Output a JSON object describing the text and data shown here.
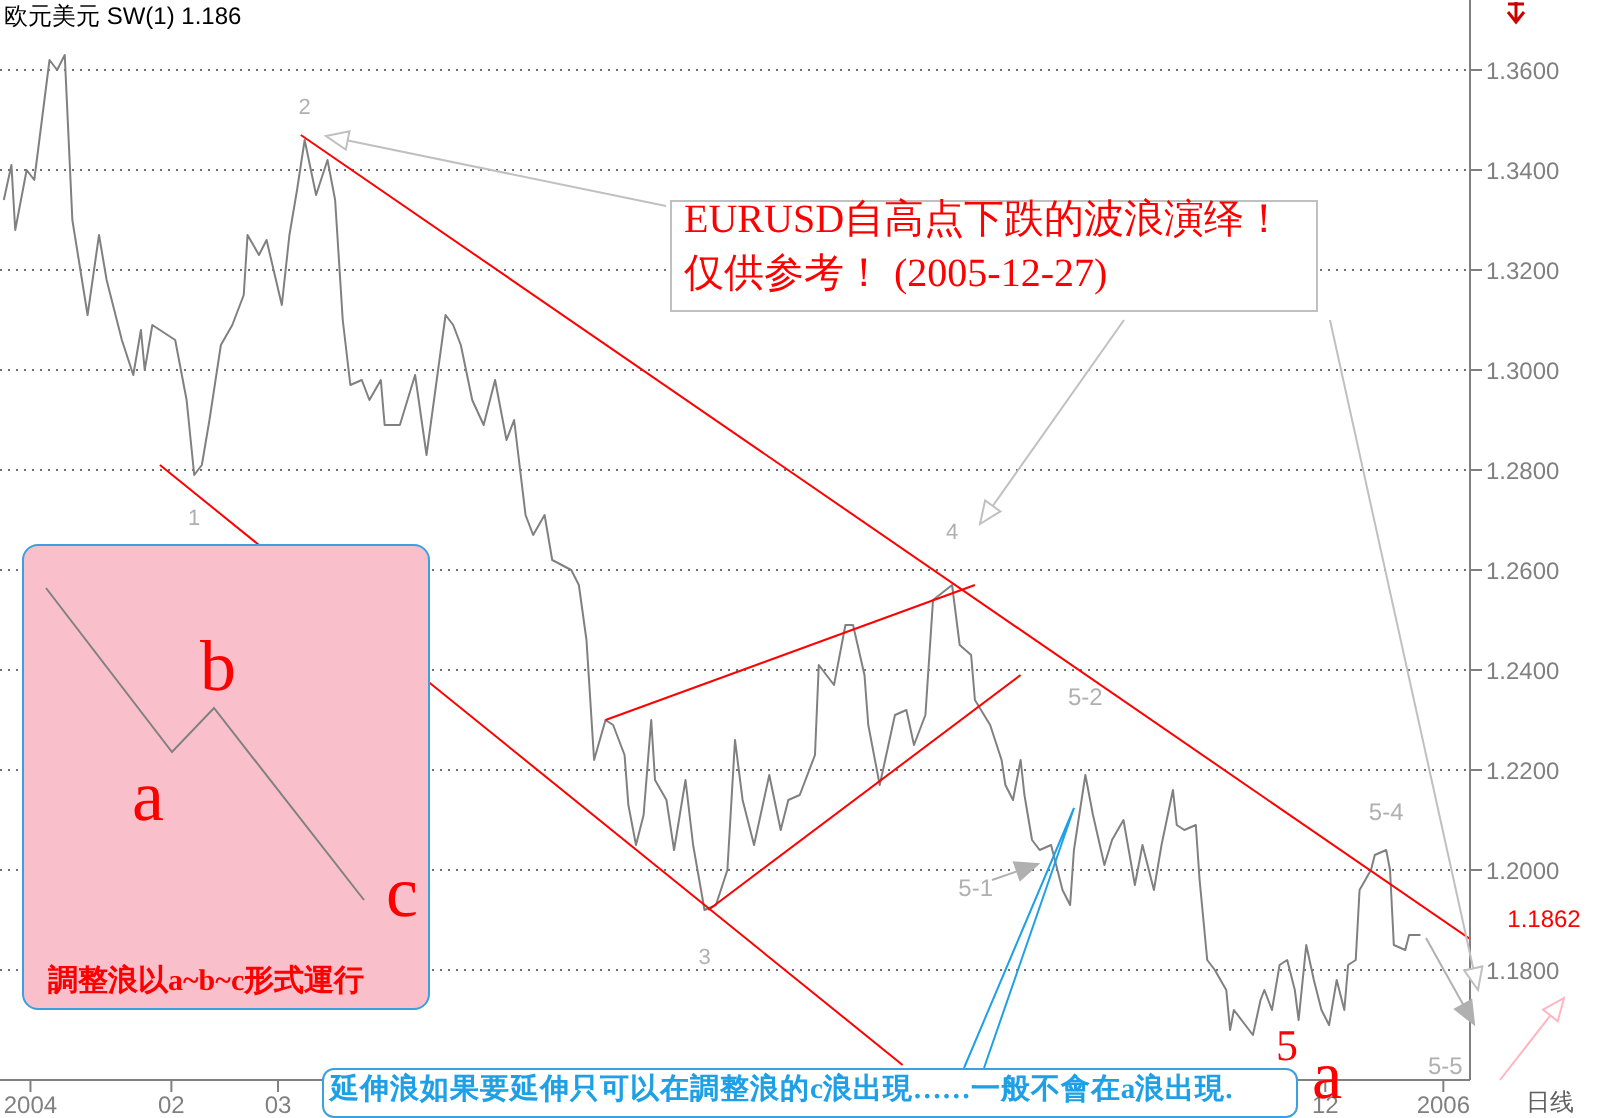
{
  "chart_data": {
    "type": "line",
    "title": "欧元美元 SW(1) 1.186",
    "xlabel": "日线",
    "x": [
      "2004-12-19",
      "2004-12-21",
      "2004-12-22",
      "2004-12-25",
      "2004-12-27",
      "2004-12-29",
      "2004-12-31",
      "2005-01-02",
      "2005-01-04",
      "2005-01-06",
      "2005-01-10",
      "2005-01-13",
      "2005-01-15",
      "2005-01-19",
      "2005-01-22",
      "2005-01-24",
      "2005-01-25",
      "2005-01-27",
      "2005-01-31",
      "2005-02-02",
      "2005-02-05",
      "2005-02-07",
      "2005-02-09",
      "2005-02-11",
      "2005-02-14",
      "2005-02-17",
      "2005-02-20",
      "2005-02-21",
      "2005-02-24",
      "2005-02-26",
      "2005-03-02",
      "2005-03-04",
      "2005-03-06",
      "2005-03-08",
      "2005-03-11",
      "2005-03-14",
      "2005-03-16",
      "2005-03-18",
      "2005-03-20",
      "2005-03-23",
      "2005-03-25",
      "2005-03-28",
      "2005-03-29",
      "2005-04-02",
      "2005-04-06",
      "2005-04-09",
      "2005-04-14",
      "2005-04-16",
      "2005-04-18",
      "2005-04-21",
      "2005-04-24",
      "2005-04-27",
      "2005-04-30",
      "2005-05-02",
      "2005-05-05",
      "2005-05-07",
      "2005-05-10",
      "2005-05-12",
      "2005-05-17",
      "2005-05-19",
      "2005-05-21",
      "2005-05-23",
      "2005-05-26",
      "2005-05-28",
      "2005-05-31",
      "2005-06-01",
      "2005-06-03",
      "2005-06-05",
      "2005-06-07",
      "2005-06-08",
      "2005-06-11",
      "2005-06-13",
      "2005-06-16",
      "2005-06-18",
      "2005-06-21",
      "2005-06-24",
      "2005-06-27",
      "2005-06-29",
      "2005-07-01",
      "2005-07-04",
      "2005-07-08",
      "2005-07-11",
      "2005-07-13",
      "2005-07-16",
      "2005-07-20",
      "2005-07-21",
      "2005-07-25",
      "2005-07-28",
      "2005-07-30",
      "2005-08-02",
      "2005-08-03",
      "2005-08-06",
      "2005-08-10",
      "2005-08-13",
      "2005-08-15",
      "2005-08-18",
      "2005-08-20",
      "2005-08-25",
      "2005-08-27",
      "2005-08-30",
      "2005-08-31",
      "2005-09-04",
      "2005-09-07",
      "2005-09-08",
      "2005-09-10",
      "2005-09-12",
      "2005-09-13",
      "2005-09-15",
      "2005-09-17",
      "2005-09-20",
      "2005-09-23",
      "2005-09-25",
      "2005-09-26",
      "2005-09-29",
      "2005-10-01",
      "2005-10-04",
      "2005-10-06",
      "2005-10-09",
      "2005-10-12",
      "2005-10-14",
      "2005-10-17",
      "2005-10-19",
      "2005-10-22",
      "2005-10-23",
      "2005-10-25",
      "2005-10-28",
      "2005-10-29",
      "2005-10-31",
      "2005-11-02",
      "2005-11-05",
      "2005-11-06",
      "2005-11-07",
      "2005-11-10",
      "2005-11-12",
      "2005-11-14",
      "2005-11-15",
      "2005-11-17",
      "2005-11-19",
      "2005-11-21",
      "2005-11-23",
      "2005-11-24",
      "2005-11-26",
      "2005-11-28",
      "2005-11-30",
      "2005-12-02",
      "2005-12-04",
      "2005-12-06",
      "2005-12-07",
      "2005-12-09",
      "2005-12-10",
      "2005-12-13",
      "2005-12-14",
      "2005-12-17",
      "2005-12-18",
      "2005-12-19",
      "2005-12-22",
      "2005-12-23",
      "2005-12-26"
    ],
    "series": [
      {
        "color": "#808080",
        "values": [
          1.334,
          1.341,
          1.328,
          1.34,
          1.338,
          1.35,
          1.362,
          1.36,
          1.363,
          1.33,
          1.311,
          1.327,
          1.318,
          1.306,
          1.299,
          1.308,
          1.3,
          1.309,
          1.307,
          1.306,
          1.294,
          1.279,
          1.281,
          1.29,
          1.305,
          1.309,
          1.315,
          1.327,
          1.323,
          1.326,
          1.313,
          1.327,
          1.336,
          1.346,
          1.335,
          1.342,
          1.334,
          1.31,
          1.297,
          1.298,
          1.294,
          1.298,
          1.289,
          1.289,
          1.299,
          1.283,
          1.311,
          1.309,
          1.305,
          1.294,
          1.289,
          1.298,
          1.286,
          1.29,
          1.271,
          1.267,
          1.271,
          1.262,
          1.26,
          1.257,
          1.246,
          1.222,
          1.23,
          1.229,
          1.223,
          1.213,
          1.205,
          1.211,
          1.23,
          1.218,
          1.214,
          1.204,
          1.218,
          1.205,
          1.192,
          1.193,
          1.2,
          1.226,
          1.214,
          1.205,
          1.219,
          1.208,
          1.214,
          1.215,
          1.223,
          1.241,
          1.237,
          1.249,
          1.249,
          1.239,
          1.229,
          1.217,
          1.231,
          1.232,
          1.225,
          1.231,
          1.254,
          1.257,
          1.245,
          1.243,
          1.234,
          1.229,
          1.222,
          1.217,
          1.214,
          1.222,
          1.215,
          1.206,
          1.204,
          1.205,
          1.196,
          1.193,
          1.204,
          1.219,
          1.211,
          1.201,
          1.206,
          1.21,
          1.197,
          1.205,
          1.196,
          1.205,
          1.216,
          1.209,
          1.208,
          1.209,
          1.198,
          1.182,
          1.18,
          1.176,
          1.168,
          1.172,
          1.169,
          1.167,
          1.174,
          1.176,
          1.172,
          1.181,
          1.182,
          1.176,
          1.17,
          1.185,
          1.178,
          1.172,
          1.169,
          1.178,
          1.172,
          1.181,
          1.182,
          1.196,
          1.2,
          1.203,
          1.204,
          1.2,
          1.185,
          1.184,
          1.187,
          1.187
        ]
      },
      {
        "type": "line",
        "color": "#ff0000",
        "x": [
          "2005-03-07",
          "2006-01-08"
        ],
        "values": [
          1.347,
          1.1862
        ]
      },
      {
        "type": "line",
        "color": "#ff0000",
        "x": [
          "2005-01-29",
          "2005-08-12"
        ],
        "values": [
          1.281,
          1.161
        ]
      },
      {
        "type": "line",
        "color": "#ff0000",
        "x": [
          "2005-05-26",
          "2005-08-31"
        ],
        "values": [
          1.23,
          1.257
        ]
      },
      {
        "type": "line",
        "color": "#ff0000",
        "x": [
          "2005-06-22",
          "2005-09-12"
        ],
        "values": [
          1.192,
          1.239
        ]
      }
    ],
    "xlim": [
      "2004-12-18",
      "2006-01-08"
    ],
    "xticks": [
      {
        "value": "2004-12-26",
        "label": "2004"
      },
      {
        "value": "2005-02-01",
        "label": "02"
      },
      {
        "value": "2005-03-01",
        "label": "03"
      },
      {
        "value": "2005-12-01",
        "label": "12"
      },
      {
        "value": "2006-01-01",
        "label": "2006"
      }
    ],
    "ylim": [
      1.158,
      1.374
    ],
    "yticks": [
      {
        "value": 1.18,
        "label": "1.1800"
      },
      {
        "value": 1.2,
        "label": "1.2000"
      },
      {
        "value": 1.22,
        "label": "1.2200"
      },
      {
        "value": 1.24,
        "label": "1.2400"
      },
      {
        "value": 1.26,
        "label": "1.2600"
      },
      {
        "value": 1.28,
        "label": "1.2800"
      },
      {
        "value": 1.3,
        "label": "1.3000"
      },
      {
        "value": 1.32,
        "label": "1.3200"
      },
      {
        "value": 1.34,
        "label": "1.3400"
      },
      {
        "value": 1.36,
        "label": "1.3600"
      }
    ],
    "grid": "y",
    "marker": "none",
    "line_style": "solid",
    "annotations": [
      {
        "text": "1",
        "x": "2005-02-07",
        "y": 1.279
      },
      {
        "text": "2",
        "x": "2005-03-08",
        "y": 1.346
      },
      {
        "text": "3",
        "x": "2005-06-21",
        "y": 1.192
      },
      {
        "text": "4",
        "x": "2005-08-25",
        "y": 1.257
      },
      {
        "text": "5-1",
        "x": "2005-09-17",
        "y": 1.204
      },
      {
        "text": "5-2",
        "x": "2005-09-29",
        "y": 1.219
      },
      {
        "text": "5-4",
        "x": "2005-12-17",
        "y": 1.204
      },
      {
        "text": "1.1862",
        "x": "2006-01-08",
        "y": 1.1862
      },
      "EURUSD自高点下跌的波浪演绎！",
      "仅供参考！ (2005-12-27)",
      "a",
      "b",
      "c",
      "調整浪以a~b~c形式運行",
      "延伸浪如果要延伸只可以在調整浪的c浪出現……一般不會在a浪出現.",
      "5",
      "a",
      "5-5"
    ]
  }
}
